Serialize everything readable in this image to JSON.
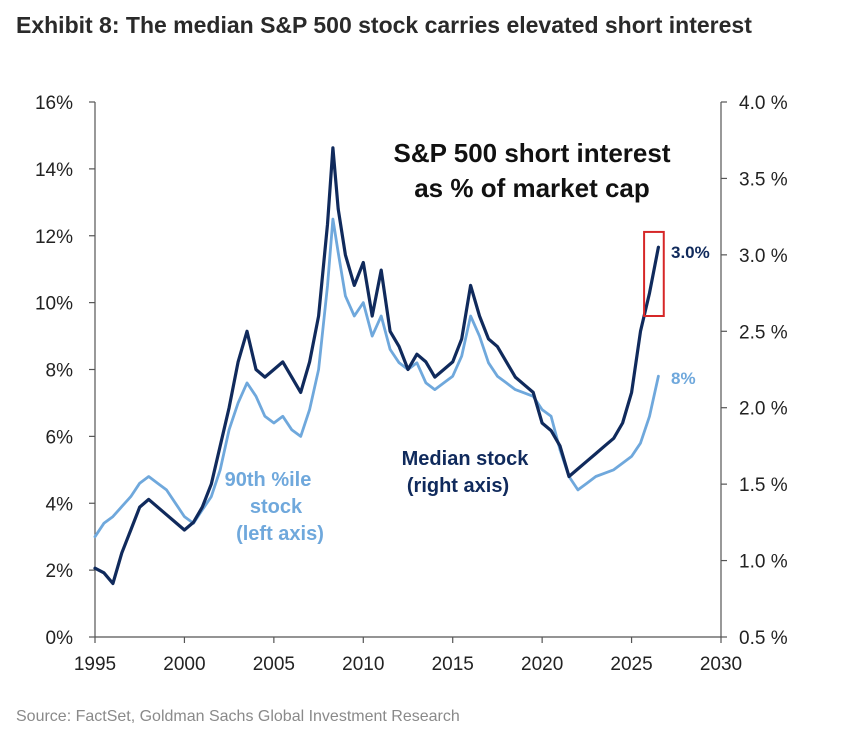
{
  "header": {
    "title": "Exhibit 8: The median S&P 500 stock carries elevated short interest"
  },
  "footer": {
    "source": "Source: FactSet, Goldman Sachs Global Investment Research"
  },
  "chart_data": {
    "type": "line",
    "title_lines": [
      "S&P 500 short interest",
      "as % of market cap"
    ],
    "xlim": [
      1995,
      2030
    ],
    "x_ticks": [
      1995,
      2000,
      2005,
      2010,
      2015,
      2020,
      2025,
      2030
    ],
    "x_tick_labels": [
      "1995",
      "2000",
      "2005",
      "2010",
      "2015",
      "2020",
      "2025",
      "2030"
    ],
    "left_axis": {
      "ylim": [
        0,
        16
      ],
      "ticks": [
        0,
        2,
        4,
        6,
        8,
        10,
        12,
        14,
        16
      ],
      "tick_labels": [
        "0%",
        "2%",
        "4%",
        "6%",
        "8%",
        "10%",
        "12%",
        "14%",
        "16%"
      ]
    },
    "right_axis": {
      "ylim": [
        0.5,
        4.0
      ],
      "ticks": [
        0.5,
        1.0,
        1.5,
        2.0,
        2.5,
        3.0,
        3.5,
        4.0
      ],
      "tick_labels": [
        "0.5 %",
        "1.0 %",
        "1.5 %",
        "2.0 %",
        "2.5 %",
        "3.0 %",
        "3.5 %",
        "4.0 %"
      ]
    },
    "grid": false,
    "series": [
      {
        "name_lines": [
          "90th %ile",
          "stock",
          "(left axis)"
        ],
        "axis": "left",
        "color": "#6fa8dc",
        "end_label": "8%",
        "x": [
          1995,
          1995.5,
          1996,
          1996.5,
          1997,
          1997.5,
          1998,
          1998.5,
          1999,
          1999.5,
          2000,
          2000.5,
          2001,
          2001.5,
          2002,
          2002.5,
          2003,
          2003.5,
          2004,
          2004.5,
          2005,
          2005.5,
          2006,
          2006.5,
          2007,
          2007.5,
          2008,
          2008.3,
          2008.6,
          2009,
          2009.5,
          2010,
          2010.5,
          2011,
          2011.5,
          2012,
          2012.5,
          2013,
          2013.5,
          2014,
          2014.5,
          2015,
          2015.5,
          2016,
          2016.5,
          2017,
          2017.5,
          2018,
          2018.5,
          2019,
          2019.5,
          2020,
          2020.5,
          2021,
          2021.5,
          2022,
          2022.5,
          2023,
          2023.5,
          2024,
          2024.5,
          2025,
          2025.5,
          2026,
          2026.5
        ],
        "values": [
          3.0,
          3.4,
          3.6,
          3.9,
          4.2,
          4.6,
          4.8,
          4.6,
          4.4,
          4.0,
          3.6,
          3.4,
          3.8,
          4.2,
          5.0,
          6.2,
          7.0,
          7.6,
          7.2,
          6.6,
          6.4,
          6.6,
          6.2,
          6.0,
          6.8,
          8.0,
          10.5,
          12.5,
          11.5,
          10.2,
          9.6,
          10.0,
          9.0,
          9.6,
          8.6,
          8.2,
          8.0,
          8.2,
          7.6,
          7.4,
          7.6,
          7.8,
          8.4,
          9.6,
          9.0,
          8.2,
          7.8,
          7.6,
          7.4,
          7.3,
          7.2,
          6.8,
          6.6,
          5.6,
          4.8,
          4.4,
          4.6,
          4.8,
          4.9,
          5.0,
          5.2,
          5.4,
          5.8,
          6.6,
          7.8
        ]
      },
      {
        "name_lines": [
          "Median stock",
          "(right axis)"
        ],
        "axis": "right",
        "color": "#102a5c",
        "end_label": "3.0%",
        "x": [
          1995,
          1995.5,
          1996,
          1996.5,
          1997,
          1997.5,
          1998,
          1998.5,
          1999,
          1999.5,
          2000,
          2000.5,
          2001,
          2001.5,
          2002,
          2002.5,
          2003,
          2003.5,
          2004,
          2004.5,
          2005,
          2005.5,
          2006,
          2006.5,
          2007,
          2007.5,
          2008,
          2008.3,
          2008.6,
          2009,
          2009.5,
          2010,
          2010.5,
          2011,
          2011.5,
          2012,
          2012.5,
          2013,
          2013.5,
          2014,
          2014.5,
          2015,
          2015.5,
          2016,
          2016.5,
          2017,
          2017.5,
          2018,
          2018.5,
          2019,
          2019.5,
          2020,
          2020.5,
          2021,
          2021.5,
          2022,
          2022.5,
          2023,
          2023.5,
          2024,
          2024.5,
          2025,
          2025.5,
          2026,
          2026.5
        ],
        "values": [
          0.95,
          0.92,
          0.85,
          1.05,
          1.2,
          1.35,
          1.4,
          1.35,
          1.3,
          1.25,
          1.2,
          1.25,
          1.35,
          1.5,
          1.75,
          2.0,
          2.3,
          2.5,
          2.25,
          2.2,
          2.25,
          2.3,
          2.2,
          2.1,
          2.3,
          2.6,
          3.2,
          3.7,
          3.3,
          3.0,
          2.8,
          2.95,
          2.6,
          2.9,
          2.5,
          2.4,
          2.25,
          2.35,
          2.3,
          2.2,
          2.25,
          2.3,
          2.45,
          2.8,
          2.6,
          2.45,
          2.4,
          2.3,
          2.2,
          2.15,
          2.1,
          1.9,
          1.85,
          1.75,
          1.55,
          1.6,
          1.65,
          1.7,
          1.75,
          1.8,
          1.9,
          2.1,
          2.5,
          2.75,
          3.05
        ]
      }
    ],
    "highlight_box": {
      "x_range": [
        2025.7,
        2026.8
      ],
      "right_range": [
        2.6,
        3.15
      ],
      "color": "#d62728"
    }
  }
}
